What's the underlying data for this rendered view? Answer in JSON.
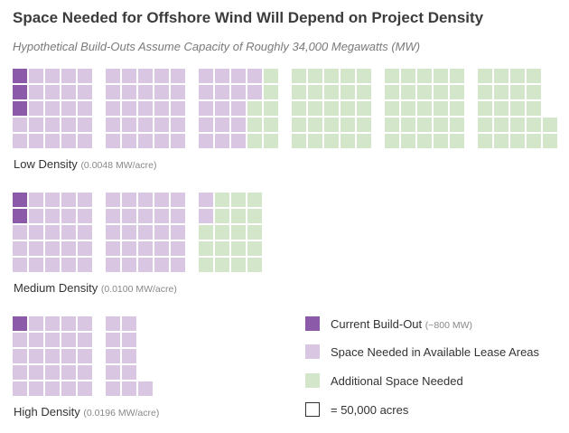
{
  "colors": {
    "current": "#8b5aa8",
    "available": "#d9c6e3",
    "additional": "#d3e6c9",
    "outline": "#333333"
  },
  "chart_data": {
    "type": "waffle",
    "title": "Space Needed for Offshore Wind Will Depend on Project Density",
    "subtitle": "Hypothetical Build-Outs Assume Capacity of Roughly 34,000 Megawatts (MW)",
    "unit_note": "= 50,000 acres",
    "groups": [
      {
        "name": "Low Density",
        "density": "(0.0048 MW/acre)",
        "current": 3,
        "available": 64,
        "additional": 80
      },
      {
        "name": "Medium Density",
        "density": "(0.0100 MW/acre)",
        "current": 2,
        "available": 50,
        "additional": 18
      },
      {
        "name": "High Density",
        "density": "(0.0196 MW/acre)",
        "current": 1,
        "available": 35,
        "additional": 0
      }
    ],
    "legend": [
      {
        "key": "current",
        "label": "Current Build-Out",
        "note": "(~800 MW)"
      },
      {
        "key": "available",
        "label": "Space Needed in Available Lease Areas",
        "note": ""
      },
      {
        "key": "additional",
        "label": "Additional Space Needed",
        "note": ""
      },
      {
        "key": "unit",
        "label": "= 50,000 acres",
        "note": ""
      }
    ]
  }
}
